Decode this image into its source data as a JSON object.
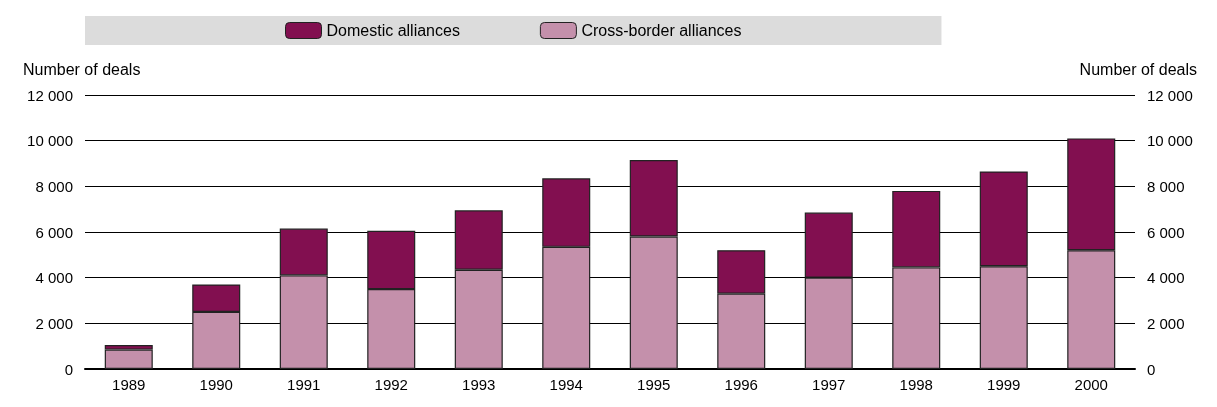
{
  "chart_data": {
    "type": "bar",
    "stacked": true,
    "ylabel": "Number of deals",
    "y2label": "Number of deals",
    "categories": [
      "1989",
      "1990",
      "1991",
      "1992",
      "1993",
      "1994",
      "1995",
      "1996",
      "1997",
      "1998",
      "1999",
      "2000"
    ],
    "series": [
      {
        "name": "Cross-border alliances",
        "color": "#c490ab",
        "values": [
          850,
          2500,
          4100,
          3500,
          4350,
          5350,
          5800,
          3300,
          4000,
          4450,
          4500,
          5200
        ]
      },
      {
        "name": "Domestic alliances",
        "color": "#820f50",
        "values": [
          200,
          1200,
          2050,
          2550,
          2600,
          3000,
          3350,
          1900,
          2850,
          3350,
          4150,
          4900
        ]
      }
    ],
    "ylim": [
      0,
      12000
    ],
    "yticks": [
      {
        "value": 0,
        "label": "0"
      },
      {
        "value": 2000,
        "label": "2 000"
      },
      {
        "value": 4000,
        "label": "4 000"
      },
      {
        "value": 6000,
        "label": "6 000"
      },
      {
        "value": 8000,
        "label": "8 000"
      },
      {
        "value": 10000,
        "label": "10 000"
      },
      {
        "value": 12000,
        "label": "12 000"
      }
    ],
    "y2lim": [
      0,
      12000
    ],
    "y2ticks": [
      {
        "value": 0,
        "label": "0"
      },
      {
        "value": 2000,
        "label": "2 000"
      },
      {
        "value": 4000,
        "label": "4 000"
      },
      {
        "value": 6000,
        "label": "6 000"
      },
      {
        "value": 8000,
        "label": "8 000"
      },
      {
        "value": 10000,
        "label": "10 000"
      },
      {
        "value": 12000,
        "label": "12 000"
      }
    ],
    "grid": "y",
    "legend": "top"
  }
}
